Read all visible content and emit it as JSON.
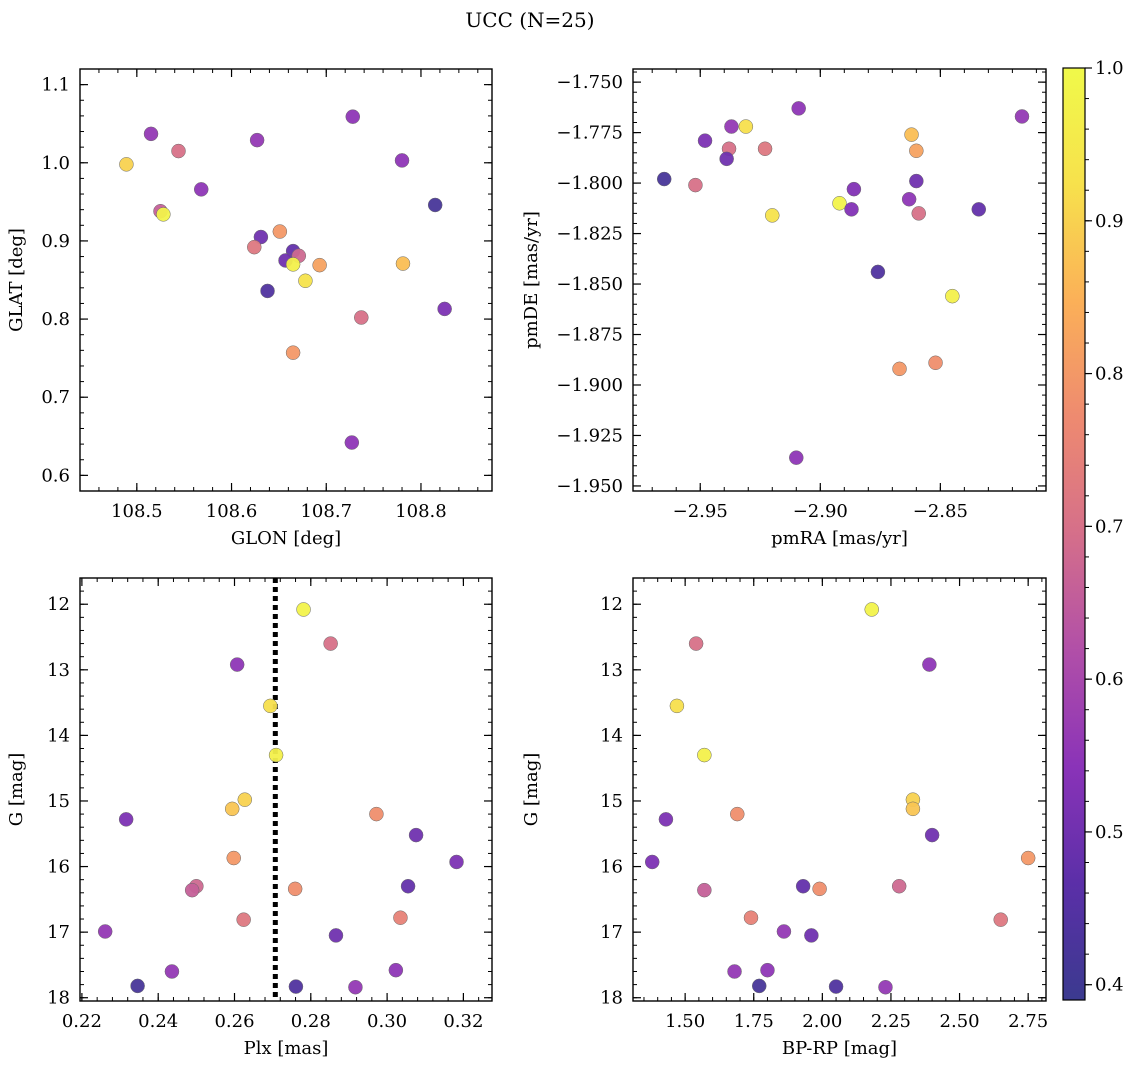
{
  "figure": {
    "title": "UCC (N=25)"
  },
  "colormap": {
    "name": "plasma",
    "range": [
      0.39,
      1.0
    ],
    "ticks": [
      0.4,
      0.5,
      0.6,
      0.7,
      0.8,
      0.9,
      1.0
    ],
    "tick_labels": [
      "0.4",
      "0.5",
      "0.6",
      "0.7",
      "0.8",
      "0.9",
      "1.0"
    ],
    "stops": [
      "#3b3a8f",
      "#5b2fa8",
      "#8a33b8",
      "#b14fa8",
      "#d56f8a",
      "#ee8a70",
      "#fbb058",
      "#f7e14c",
      "#f0f94a"
    ]
  },
  "chart_data": [
    {
      "type": "scatter",
      "xlabel": "GLON [deg]",
      "ylabel": "GLAT [deg]",
      "xlim": [
        108.44,
        108.875
      ],
      "ylim": [
        0.58,
        1.12
      ],
      "xticks": [
        108.5,
        108.6,
        108.7,
        108.8
      ],
      "xtick_labels": [
        "108.5",
        "108.6",
        "108.7",
        "108.8"
      ],
      "yticks": [
        0.6,
        0.7,
        0.8,
        0.9,
        1.0,
        1.1
      ],
      "ytick_labels": [
        "0.6",
        "0.7",
        "0.8",
        "0.9",
        "1.0",
        "1.1"
      ],
      "x": [
        108.728,
        108.515,
        108.544,
        108.627,
        108.78,
        108.489,
        108.568,
        108.525,
        108.528,
        108.815,
        108.651,
        108.631,
        108.624,
        108.665,
        108.671,
        108.657,
        108.665,
        108.693,
        108.781,
        108.678,
        108.638,
        108.825,
        108.737,
        108.665,
        108.727
      ],
      "y": [
        1.059,
        1.037,
        1.015,
        1.029,
        1.003,
        0.998,
        0.966,
        0.938,
        0.934,
        0.946,
        0.912,
        0.905,
        0.892,
        0.887,
        0.881,
        0.875,
        0.87,
        0.869,
        0.871,
        0.849,
        0.836,
        0.813,
        0.802,
        0.757,
        0.642
      ],
      "c": [
        0.55,
        0.56,
        0.7,
        0.56,
        0.55,
        0.9,
        0.55,
        0.66,
        0.98,
        0.42,
        0.8,
        0.5,
        0.72,
        0.48,
        0.68,
        0.5,
        0.97,
        0.82,
        0.87,
        0.93,
        0.44,
        0.52,
        0.7,
        0.8,
        0.55
      ]
    },
    {
      "type": "scatter",
      "xlabel": "pmRA [mas/yr]",
      "ylabel": "pmDE [mas/yr]",
      "xlim": [
        -2.978,
        -2.806
      ],
      "ylim": [
        -1.9525,
        -1.7435
      ],
      "xticks": [
        -2.95,
        -2.9,
        -2.85
      ],
      "xtick_labels": [
        "−2.95",
        "−2.90",
        "−2.85"
      ],
      "yticks": [
        -1.95,
        -1.925,
        -1.9,
        -1.875,
        -1.85,
        -1.825,
        -1.8,
        -1.775,
        -1.75
      ],
      "ytick_labels": [
        "−1.950",
        "−1.925",
        "−1.900",
        "−1.875",
        "−1.850",
        "−1.825",
        "−1.800",
        "−1.775",
        "−1.750"
      ],
      "x": [
        -2.909,
        -2.816,
        -2.937,
        -2.931,
        -2.948,
        -2.862,
        -2.938,
        -2.923,
        -2.86,
        -2.939,
        -2.965,
        -2.952,
        -2.886,
        -2.86,
        -2.863,
        -2.892,
        -2.887,
        -2.859,
        -2.834,
        -2.92,
        -2.876,
        -2.845,
        -2.852,
        -2.867,
        -2.91
      ],
      "y": [
        -1.763,
        -1.767,
        -1.772,
        -1.772,
        -1.779,
        -1.776,
        -1.783,
        -1.783,
        -1.784,
        -1.788,
        -1.798,
        -1.801,
        -1.803,
        -1.799,
        -1.808,
        -1.81,
        -1.813,
        -1.815,
        -1.813,
        -1.816,
        -1.844,
        -1.856,
        -1.889,
        -1.892,
        -1.936
      ],
      "c": [
        0.55,
        0.56,
        0.56,
        0.92,
        0.52,
        0.87,
        0.7,
        0.72,
        0.82,
        0.5,
        0.42,
        0.7,
        0.53,
        0.5,
        0.55,
        0.98,
        0.53,
        0.7,
        0.48,
        0.93,
        0.44,
        0.97,
        0.78,
        0.8,
        0.55
      ]
    },
    {
      "type": "scatter",
      "xlabel": "Plx [mas]",
      "ylabel": "G [mag]",
      "xlim": [
        0.2195,
        0.3275
      ],
      "ylim": [
        18.05,
        11.6
      ],
      "y_inverted": true,
      "vline_x": 0.2707,
      "xticks": [
        0.22,
        0.24,
        0.26,
        0.28,
        0.3,
        0.32
      ],
      "xtick_labels": [
        "0.22",
        "0.24",
        "0.26",
        "0.28",
        "0.30",
        "0.32"
      ],
      "yticks": [
        12,
        13,
        14,
        15,
        16,
        17,
        18
      ],
      "ytick_labels": [
        "12",
        "13",
        "14",
        "15",
        "16",
        "17",
        "18"
      ],
      "x": [
        0.2781,
        0.2852,
        0.2607,
        0.2694,
        0.2709,
        0.2627,
        0.2594,
        0.2972,
        0.2316,
        0.3076,
        0.2598,
        0.3182,
        0.3055,
        0.25,
        0.2759,
        0.2489,
        0.3035,
        0.2624,
        0.2261,
        0.2866,
        0.2436,
        0.3023,
        0.2346,
        0.2761,
        0.2917
      ],
      "y": [
        12.08,
        12.6,
        12.92,
        13.55,
        14.3,
        14.98,
        15.12,
        15.2,
        15.28,
        15.52,
        15.87,
        15.93,
        16.3,
        16.3,
        16.34,
        16.36,
        16.78,
        16.81,
        16.99,
        17.05,
        17.6,
        17.58,
        17.82,
        17.83,
        17.84
      ],
      "c": [
        0.98,
        0.7,
        0.55,
        0.92,
        0.97,
        0.9,
        0.88,
        0.78,
        0.52,
        0.5,
        0.8,
        0.52,
        0.48,
        0.68,
        0.78,
        0.66,
        0.75,
        0.72,
        0.56,
        0.5,
        0.56,
        0.55,
        0.42,
        0.44,
        0.56
      ]
    },
    {
      "type": "scatter",
      "xlabel": "BP-RP [mag]",
      "ylabel": "G [mag]",
      "xlim": [
        1.31,
        2.815
      ],
      "ylim": [
        18.05,
        11.6
      ],
      "y_inverted": true,
      "xticks": [
        1.5,
        1.75,
        2.0,
        2.25,
        2.5,
        2.75
      ],
      "xtick_labels": [
        "1.50",
        "1.75",
        "2.00",
        "2.25",
        "2.50",
        "2.75"
      ],
      "yticks": [
        12,
        13,
        14,
        15,
        16,
        17,
        18
      ],
      "ytick_labels": [
        "12",
        "13",
        "14",
        "15",
        "16",
        "17",
        "18"
      ],
      "x": [
        2.18,
        1.54,
        2.39,
        1.47,
        1.57,
        2.33,
        2.33,
        1.69,
        1.43,
        2.4,
        2.75,
        1.38,
        1.93,
        2.28,
        1.99,
        1.57,
        1.74,
        2.65,
        1.86,
        1.96,
        1.68,
        1.8,
        1.77,
        2.05,
        2.23
      ],
      "y": [
        12.08,
        12.6,
        12.92,
        13.55,
        14.3,
        14.98,
        15.12,
        15.2,
        15.28,
        15.52,
        15.87,
        15.93,
        16.3,
        16.3,
        16.34,
        16.36,
        16.78,
        16.81,
        16.99,
        17.05,
        17.6,
        17.58,
        17.82,
        17.83,
        17.84
      ],
      "c": [
        0.98,
        0.7,
        0.55,
        0.92,
        0.97,
        0.9,
        0.88,
        0.78,
        0.52,
        0.5,
        0.8,
        0.52,
        0.48,
        0.68,
        0.78,
        0.66,
        0.75,
        0.72,
        0.56,
        0.5,
        0.56,
        0.55,
        0.42,
        0.44,
        0.56
      ]
    }
  ]
}
